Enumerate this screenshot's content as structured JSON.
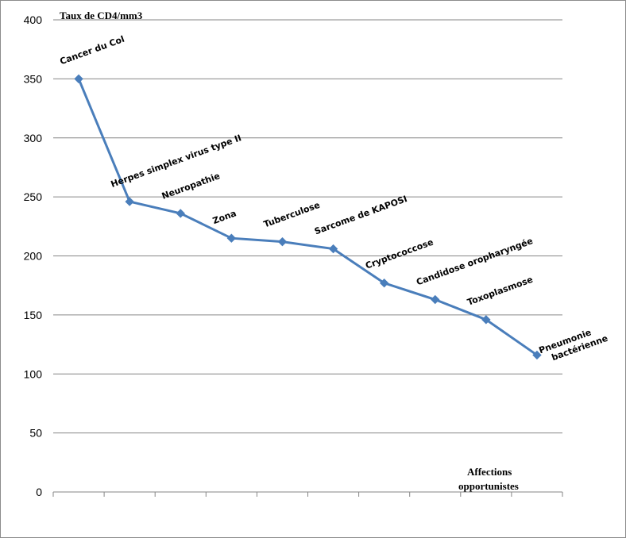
{
  "chart_data": {
    "type": "line",
    "ylabel": "Taux de CD4/mm3",
    "xlabel_lines": [
      "Affections",
      "opportunistes"
    ],
    "ylim": [
      0,
      400
    ],
    "yticks": [
      0,
      50,
      100,
      150,
      200,
      250,
      300,
      350,
      400
    ],
    "grid": true,
    "legend": "none",
    "series": [
      {
        "color": "#4a7ebb",
        "marker": "diamond",
        "points": [
          {
            "label_lines": [
              "Cancer du Col"
            ],
            "value": 350
          },
          {
            "label_lines": [
              "Herpes simplex virus type II"
            ],
            "value": 246
          },
          {
            "label_lines": [
              "Neuropathie"
            ],
            "value": 236
          },
          {
            "label_lines": [
              "Zona"
            ],
            "value": 215
          },
          {
            "label_lines": [
              "Tuberculose"
            ],
            "value": 212
          },
          {
            "label_lines": [
              "Sarcome de KAPOSI"
            ],
            "value": 206
          },
          {
            "label_lines": [
              "Cryptococcose"
            ],
            "value": 177
          },
          {
            "label_lines": [
              "Candidose oropharyngée"
            ],
            "value": 163
          },
          {
            "label_lines": [
              "Toxoplasmose"
            ],
            "value": 146
          },
          {
            "label_lines": [
              "Pneumonie",
              "bactérienne"
            ],
            "value": 116
          }
        ]
      }
    ]
  }
}
